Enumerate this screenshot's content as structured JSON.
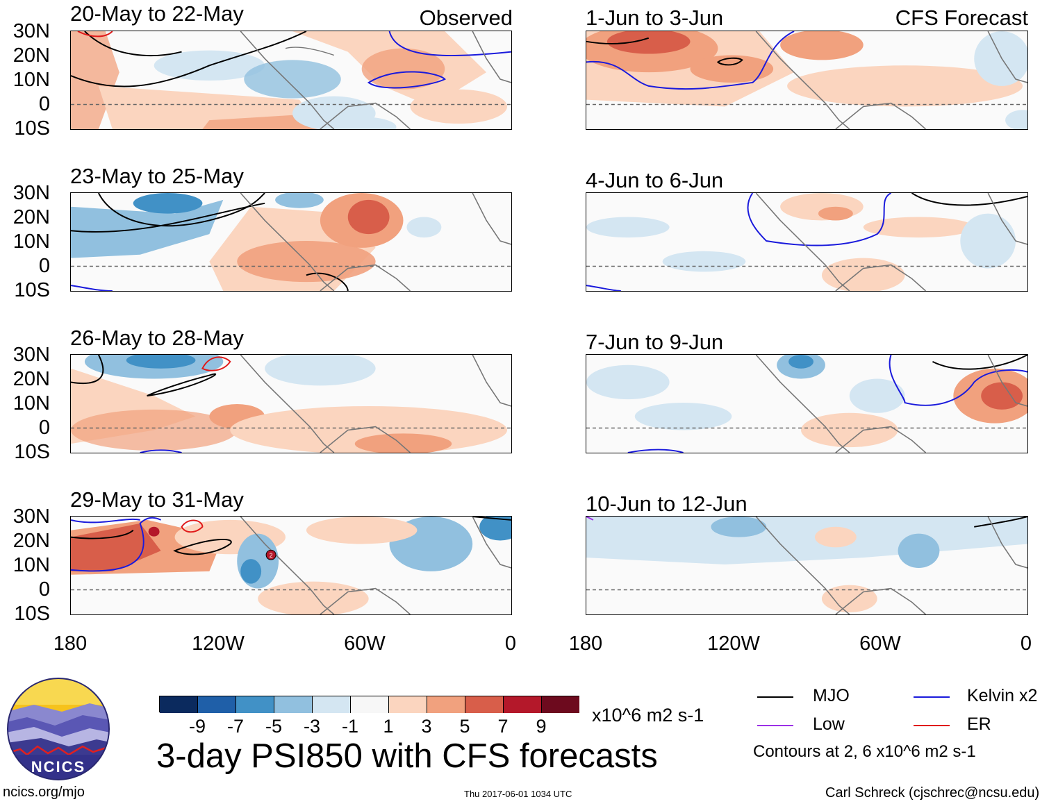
{
  "left_header": "Observed",
  "right_header": "CFS Forecast",
  "panels_left": [
    {
      "title": "20-May to 22-May"
    },
    {
      "title": "23-May to 25-May"
    },
    {
      "title": "26-May to 28-May"
    },
    {
      "title": "29-May to 31-May"
    }
  ],
  "panels_right": [
    {
      "title": "1-Jun to 3-Jun"
    },
    {
      "title": "4-Jun to 6-Jun"
    },
    {
      "title": "7-Jun to 9-Jun"
    },
    {
      "title": "10-Jun to 12-Jun"
    }
  ],
  "lat_labels": [
    "30N",
    "20N",
    "10N",
    "0",
    "10S"
  ],
  "lon_labels": [
    "180",
    "120W",
    "60W",
    "0"
  ],
  "storm_marker": "2",
  "colorbar": {
    "colors": [
      "#0b2a5e",
      "#1f5fa8",
      "#4191c6",
      "#91c0df",
      "#d4e6f2",
      "#f7f7f7",
      "#fbd5bf",
      "#f1a17e",
      "#d85e4a",
      "#b4182a",
      "#6d0a1e"
    ],
    "ticks": [
      "-9",
      "-7",
      "-5",
      "-3",
      "-1",
      "1",
      "3",
      "5",
      "7",
      "9"
    ],
    "units": "x10^6 m2 s-1"
  },
  "main_title": "3-day PSI850 with CFS forecasts",
  "legend": {
    "items": [
      {
        "label": "MJO",
        "color": "#000000"
      },
      {
        "label": "Kelvin x2",
        "color": "#1a1adc"
      },
      {
        "label": "Low",
        "color": "#9b30e6"
      },
      {
        "label": "ER",
        "color": "#e01a1a"
      }
    ],
    "note": "Contours at 2, 6 x10^6 m2 s-1"
  },
  "logo_text": "NCICS",
  "footer_left": "ncics.org/mjo",
  "footer_center": "Thu 2017-06-01 1034 UTC",
  "footer_right": "Carl Schreck (cjschrec@ncsu.edu)"
}
